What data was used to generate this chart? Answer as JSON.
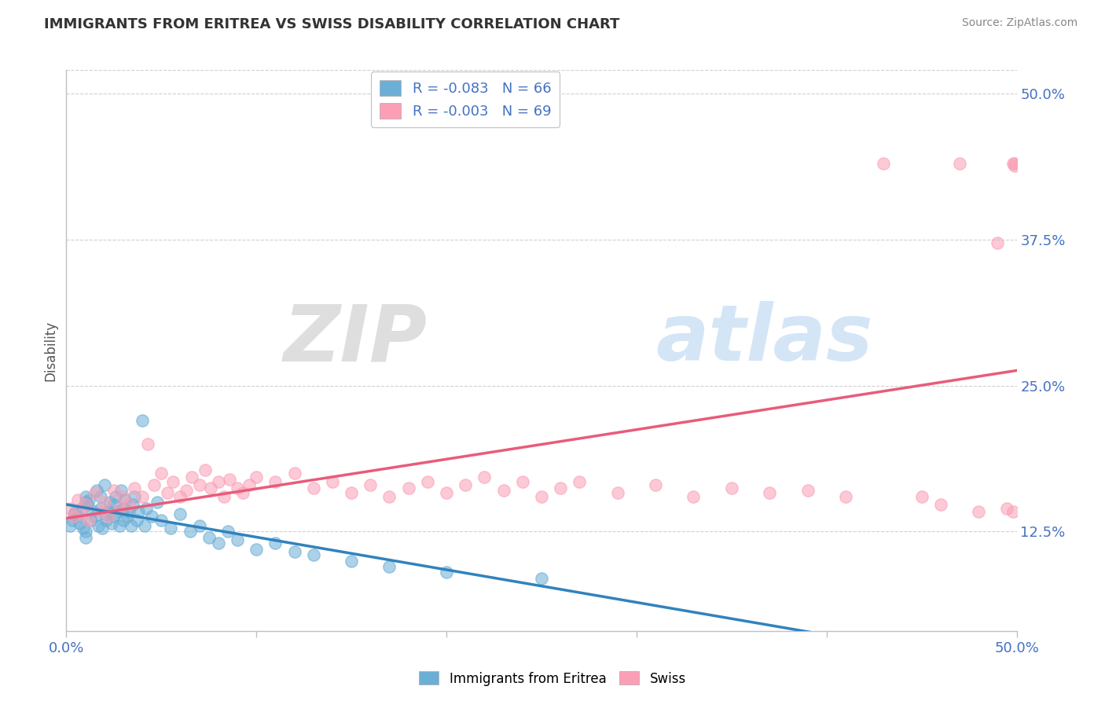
{
  "title": "IMMIGRANTS FROM ERITREA VS SWISS DISABILITY CORRELATION CHART",
  "source_text": "Source: ZipAtlas.com",
  "ylabel": "Disability",
  "xlim": [
    0.0,
    0.5
  ],
  "ylim": [
    0.04,
    0.52
  ],
  "plot_ylim": [
    0.04,
    0.52
  ],
  "xticks": [
    0.0,
    0.1,
    0.2,
    0.3,
    0.4,
    0.5
  ],
  "xtick_labels": [
    "0.0%",
    "",
    "",
    "",
    "",
    "50.0%"
  ],
  "yticks_right": [
    0.125,
    0.25,
    0.375,
    0.5
  ],
  "ytick_labels_right": [
    "12.5%",
    "25.0%",
    "37.5%",
    "50.0%"
  ],
  "blue_color": "#6baed6",
  "pink_color": "#fa9fb5",
  "blue_line_color": "#3182bd",
  "pink_line_color": "#e85c7a",
  "blue_R": -0.083,
  "blue_N": 66,
  "pink_R": -0.003,
  "pink_N": 69,
  "watermark_zip": "ZIP",
  "watermark_atlas": "atlas",
  "legend_R1": "R = -0.083   N = 66",
  "legend_R2": "R = -0.003   N = 69",
  "grid_color": "#d0d0d0",
  "tick_color": "#4472c4",
  "blue_x": [
    0.002,
    0.003,
    0.004,
    0.005,
    0.006,
    0.007,
    0.008,
    0.009,
    0.01,
    0.01,
    0.01,
    0.01,
    0.011,
    0.012,
    0.013,
    0.014,
    0.015,
    0.016,
    0.017,
    0.018,
    0.018,
    0.019,
    0.02,
    0.02,
    0.021,
    0.022,
    0.023,
    0.024,
    0.025,
    0.025,
    0.026,
    0.027,
    0.028,
    0.029,
    0.03,
    0.03,
    0.031,
    0.032,
    0.033,
    0.034,
    0.035,
    0.036,
    0.037,
    0.038,
    0.04,
    0.041,
    0.042,
    0.045,
    0.048,
    0.05,
    0.055,
    0.06,
    0.065,
    0.07,
    0.075,
    0.08,
    0.085,
    0.09,
    0.1,
    0.11,
    0.12,
    0.13,
    0.15,
    0.17,
    0.2,
    0.25
  ],
  "blue_y": [
    0.13,
    0.135,
    0.14,
    0.142,
    0.138,
    0.132,
    0.145,
    0.128,
    0.15,
    0.125,
    0.155,
    0.12,
    0.148,
    0.152,
    0.135,
    0.143,
    0.138,
    0.16,
    0.13,
    0.145,
    0.155,
    0.128,
    0.14,
    0.165,
    0.135,
    0.142,
    0.15,
    0.132,
    0.138,
    0.148,
    0.155,
    0.142,
    0.13,
    0.16,
    0.135,
    0.145,
    0.152,
    0.138,
    0.142,
    0.13,
    0.148,
    0.155,
    0.135,
    0.142,
    0.22,
    0.13,
    0.145,
    0.138,
    0.15,
    0.135,
    0.128,
    0.14,
    0.125,
    0.13,
    0.12,
    0.115,
    0.125,
    0.118,
    0.11,
    0.115,
    0.108,
    0.105,
    0.1,
    0.095,
    0.09,
    0.085
  ],
  "pink_x": [
    0.002,
    0.004,
    0.006,
    0.008,
    0.01,
    0.012,
    0.015,
    0.018,
    0.02,
    0.022,
    0.025,
    0.028,
    0.03,
    0.033,
    0.036,
    0.04,
    0.043,
    0.046,
    0.05,
    0.053,
    0.056,
    0.06,
    0.063,
    0.066,
    0.07,
    0.073,
    0.076,
    0.08,
    0.083,
    0.086,
    0.09,
    0.093,
    0.096,
    0.1,
    0.11,
    0.12,
    0.13,
    0.14,
    0.15,
    0.16,
    0.17,
    0.18,
    0.19,
    0.2,
    0.21,
    0.22,
    0.23,
    0.24,
    0.25,
    0.26,
    0.27,
    0.29,
    0.31,
    0.33,
    0.35,
    0.37,
    0.39,
    0.41,
    0.43,
    0.45,
    0.46,
    0.47,
    0.48,
    0.49,
    0.495,
    0.498,
    0.498,
    0.499,
    0.499
  ],
  "pink_y": [
    0.145,
    0.138,
    0.152,
    0.14,
    0.148,
    0.135,
    0.158,
    0.142,
    0.15,
    0.138,
    0.16,
    0.145,
    0.155,
    0.148,
    0.162,
    0.155,
    0.2,
    0.165,
    0.175,
    0.158,
    0.168,
    0.155,
    0.16,
    0.172,
    0.165,
    0.178,
    0.162,
    0.168,
    0.155,
    0.17,
    0.162,
    0.158,
    0.165,
    0.172,
    0.168,
    0.175,
    0.162,
    0.168,
    0.158,
    0.165,
    0.155,
    0.162,
    0.168,
    0.158,
    0.165,
    0.172,
    0.16,
    0.168,
    0.155,
    0.162,
    0.168,
    0.158,
    0.165,
    0.155,
    0.162,
    0.158,
    0.16,
    0.155,
    0.44,
    0.155,
    0.148,
    0.44,
    0.142,
    0.372,
    0.145,
    0.44,
    0.142,
    0.438,
    0.44
  ]
}
